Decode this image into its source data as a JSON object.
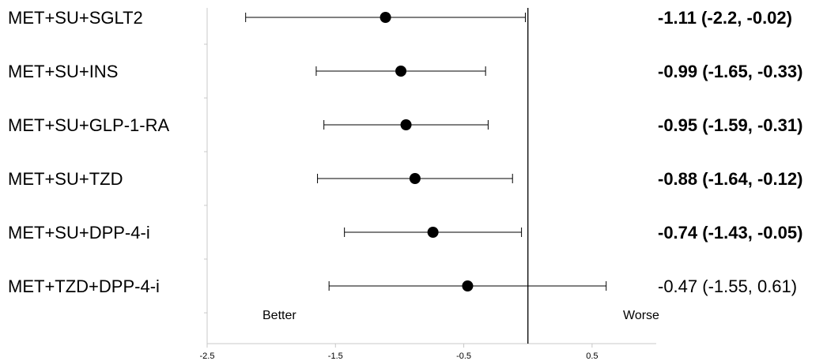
{
  "chart_data": {
    "type": "forest",
    "rows": [
      {
        "label": "MET+SU+SGLT2",
        "estimate": -1.11,
        "lower": -2.2,
        "upper": -0.02,
        "ci_text": "-1.11 (-2.2, -0.02)",
        "bold": true
      },
      {
        "label": "MET+SU+INS",
        "estimate": -0.99,
        "lower": -1.65,
        "upper": -0.33,
        "ci_text": "-0.99 (-1.65, -0.33)",
        "bold": true
      },
      {
        "label": "MET+SU+GLP-1-RA",
        "estimate": -0.95,
        "lower": -1.59,
        "upper": -0.31,
        "ci_text": "-0.95 (-1.59, -0.31)",
        "bold": true
      },
      {
        "label": "MET+SU+TZD",
        "estimate": -0.88,
        "lower": -1.64,
        "upper": -0.12,
        "ci_text": "-0.88 (-1.64, -0.12)",
        "bold": true
      },
      {
        "label": "MET+SU+DPP-4-i",
        "estimate": -0.74,
        "lower": -1.43,
        "upper": -0.05,
        "ci_text": "-0.74 (-1.43, -0.05)",
        "bold": true
      },
      {
        "label": "MET+TZD+DPP-4-i",
        "estimate": -0.47,
        "lower": -1.55,
        "upper": 0.61,
        "ci_text": "-0.47 (-1.55, 0.61)",
        "bold": false
      }
    ],
    "xlim": [
      -2.5,
      1.0
    ],
    "xticks": [
      -2.5,
      -1.5,
      -0.5,
      0.5
    ],
    "reference_line": 0,
    "left_direction_label": "Better",
    "right_direction_label": "Worse",
    "title": "",
    "xlabel": "",
    "ylabel": ""
  }
}
